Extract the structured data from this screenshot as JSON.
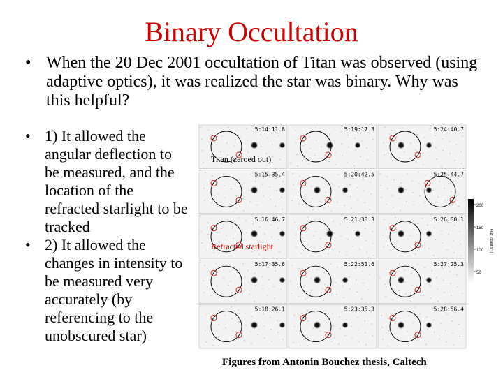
{
  "title": "Binary Occultation",
  "intro_bullet": "When the 20 Dec 2001 occultation of Titan was observed (using adaptive optics), it was realized the star was binary. Why was this helpful?",
  "bullets": [
    "1) It allowed the angular deflection to be measured, and the location of the refracted starlight to be tracked",
    "2) It allowed the changes in intensity to be measured very accurately (by referencing to the unobscured star)"
  ],
  "bullet_glyph": "•",
  "figure": {
    "annotations": {
      "titan": "Titan (zeroed out)",
      "refracted": "Refracted starlight"
    },
    "frame_times": [
      [
        "5:14:11.8",
        "5:19:17.3",
        "5:24:40.7"
      ],
      [
        "5:15:35.4",
        "5:20:42.5",
        "5:25:44.7"
      ],
      [
        "5:16:46.7",
        "5:21:30.3",
        "5:26:30.1"
      ],
      [
        "5:17:35.6",
        "5:22:51.6",
        "5:27:25.3"
      ],
      [
        "5:18:26.1",
        "5:23:35.3",
        "5:28:56.4"
      ]
    ],
    "scale_bar": {
      "ticks": [
        "200",
        "150",
        "100",
        "50"
      ],
      "unit": "Flux [count s⁻¹]"
    }
  },
  "caption": "Figures from Antonin Bouchez thesis, Caltech"
}
